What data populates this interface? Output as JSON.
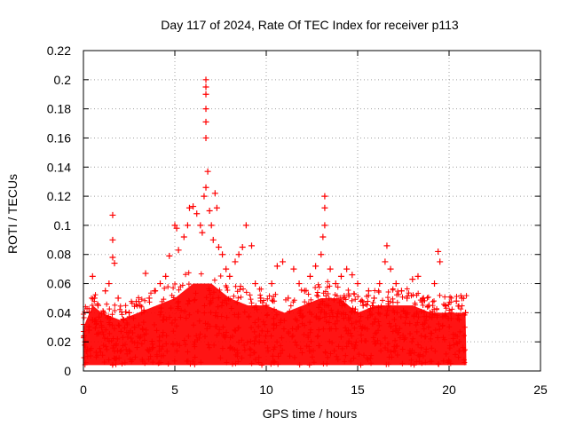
{
  "chart_data": {
    "type": "scatter",
    "title": "Day 117 of 2024, Rate Of TEC Index for receiver p113",
    "xlabel": "GPS time / hours",
    "ylabel": "ROTI / TECUs",
    "xlim": [
      0,
      25
    ],
    "ylim": [
      0,
      0.22
    ],
    "xticks": [
      0,
      5,
      10,
      15,
      20,
      25
    ],
    "xtick_labels": [
      "0",
      "5",
      "10",
      "15",
      "20",
      "25"
    ],
    "yticks": [
      0,
      0.02,
      0.04,
      0.06,
      0.08,
      0.1,
      0.12,
      0.14,
      0.16,
      0.18,
      0.2,
      0.22
    ],
    "ytick_labels": [
      "0",
      "0.02",
      "0.04",
      "0.06",
      "0.08",
      "0.1",
      "0.12",
      "0.14",
      "0.16",
      "0.18",
      "0.2",
      "0.22"
    ],
    "grid": true,
    "legend": "none",
    "marker": "+",
    "series_color": "#ff0000",
    "series": [
      {
        "points": [
          [
            0.1,
            0.02
          ],
          [
            0.3,
            0.028
          ],
          [
            0.5,
            0.035
          ],
          [
            0.6,
            0.05
          ],
          [
            0.5,
            0.065
          ],
          [
            0.8,
            0.045
          ],
          [
            1.0,
            0.03
          ],
          [
            1.2,
            0.055
          ],
          [
            1.4,
            0.06
          ],
          [
            1.6,
            0.107
          ],
          [
            1.6,
            0.09
          ],
          [
            1.6,
            0.078
          ],
          [
            1.7,
            0.074
          ],
          [
            1.9,
            0.05
          ],
          [
            2.2,
            0.035
          ],
          [
            2.5,
            0.04
          ],
          [
            2.8,
            0.03
          ],
          [
            3.1,
            0.045
          ],
          [
            3.4,
            0.067
          ],
          [
            3.6,
            0.05
          ],
          [
            3.9,
            0.055
          ],
          [
            4.2,
            0.06
          ],
          [
            4.5,
            0.065
          ],
          [
            4.7,
            0.079
          ],
          [
            5.0,
            0.1
          ],
          [
            5.1,
            0.098
          ],
          [
            5.2,
            0.083
          ],
          [
            5.5,
            0.092
          ],
          [
            5.7,
            0.1
          ],
          [
            5.8,
            0.112
          ],
          [
            6.0,
            0.113
          ],
          [
            6.2,
            0.108
          ],
          [
            6.4,
            0.1
          ],
          [
            6.5,
            0.095
          ],
          [
            6.6,
            0.12
          ],
          [
            6.7,
            0.126
          ],
          [
            6.8,
            0.137
          ],
          [
            6.7,
            0.16
          ],
          [
            6.7,
            0.171
          ],
          [
            6.7,
            0.18
          ],
          [
            6.7,
            0.19
          ],
          [
            6.7,
            0.195
          ],
          [
            6.7,
            0.2
          ],
          [
            6.9,
            0.11
          ],
          [
            7.0,
            0.1
          ],
          [
            7.1,
            0.09
          ],
          [
            7.2,
            0.122
          ],
          [
            7.3,
            0.112
          ],
          [
            7.4,
            0.085
          ],
          [
            7.6,
            0.08
          ],
          [
            7.8,
            0.07
          ],
          [
            8.0,
            0.065
          ],
          [
            8.3,
            0.075
          ],
          [
            8.5,
            0.08
          ],
          [
            8.7,
            0.085
          ],
          [
            8.9,
            0.1
          ],
          [
            9.2,
            0.086
          ],
          [
            9.4,
            0.06
          ],
          [
            9.7,
            0.05
          ],
          [
            10.0,
            0.045
          ],
          [
            10.3,
            0.06
          ],
          [
            10.6,
            0.072
          ],
          [
            10.9,
            0.075
          ],
          [
            11.2,
            0.05
          ],
          [
            11.5,
            0.07
          ],
          [
            11.8,
            0.06
          ],
          [
            12.1,
            0.055
          ],
          [
            12.4,
            0.065
          ],
          [
            12.7,
            0.072
          ],
          [
            13.0,
            0.08
          ],
          [
            13.1,
            0.092
          ],
          [
            13.2,
            0.1
          ],
          [
            13.2,
            0.112
          ],
          [
            13.2,
            0.12
          ],
          [
            13.5,
            0.07
          ],
          [
            13.8,
            0.06
          ],
          [
            14.1,
            0.065
          ],
          [
            14.4,
            0.07
          ],
          [
            14.7,
            0.066
          ],
          [
            15.0,
            0.06
          ],
          [
            15.3,
            0.045
          ],
          [
            15.6,
            0.055
          ],
          [
            15.9,
            0.05
          ],
          [
            16.2,
            0.06
          ],
          [
            16.5,
            0.075
          ],
          [
            16.6,
            0.086
          ],
          [
            16.8,
            0.07
          ],
          [
            17.1,
            0.06
          ],
          [
            17.4,
            0.055
          ],
          [
            17.7,
            0.05
          ],
          [
            18.0,
            0.063
          ],
          [
            18.3,
            0.065
          ],
          [
            18.6,
            0.05
          ],
          [
            18.9,
            0.045
          ],
          [
            19.2,
            0.06
          ],
          [
            19.4,
            0.082
          ],
          [
            19.5,
            0.075
          ],
          [
            19.8,
            0.045
          ],
          [
            20.1,
            0.04
          ],
          [
            20.4,
            0.048
          ],
          [
            20.7,
            0.05
          ],
          [
            20.9,
            0.04
          ]
        ]
      }
    ]
  }
}
